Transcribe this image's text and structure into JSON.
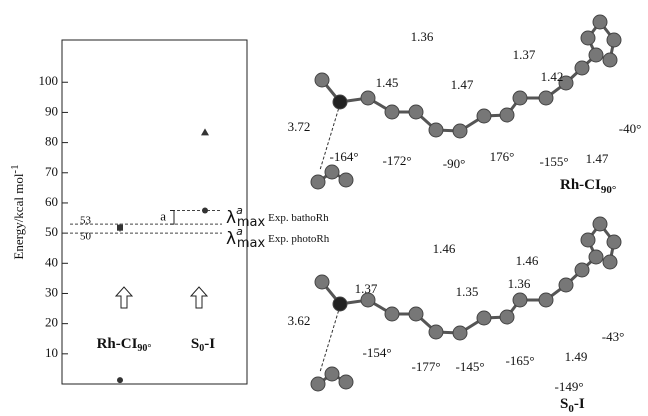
{
  "chart_data": {
    "type": "scatter",
    "y_label": "Energy/kcal mol",
    "y_label_sup": "-1",
    "ylim": [
      0,
      114
    ],
    "yticks": [
      10,
      20,
      30,
      40,
      50,
      60,
      70,
      80,
      90,
      100
    ],
    "categories": [
      {
        "name": "Rh-CI",
        "sub": "90°"
      },
      {
        "name": "S",
        "sub": "0",
        "suffix": "-I"
      }
    ],
    "points": [
      {
        "category": 0,
        "value": 51.8,
        "error": 1.3,
        "marker": "square",
        "color": "#333"
      },
      {
        "category": 0,
        "value": 1.3,
        "marker": "circle",
        "color": "#333"
      },
      {
        "category": 1,
        "value": 83.4,
        "marker": "triangle",
        "color": "#333"
      },
      {
        "category": 1,
        "value": 57.5,
        "marker": "circle",
        "color": "#333"
      }
    ],
    "reference_lines": [
      {
        "value": 53,
        "label": "53",
        "symbol": "λ",
        "sup": "a",
        "sub": "max",
        "note": "Exp. bathoRh"
      },
      {
        "value": 50,
        "label": "50",
        "symbol": "λ",
        "sup": "a",
        "sub": "max",
        "note": "Exp. photoRh"
      }
    ],
    "bracket_label": "a"
  },
  "molecules": [
    {
      "title": "Rh-CI",
      "title_sub": "90°",
      "labels": [
        "1.36",
        "1.37",
        "1.45",
        "1.47",
        "1.42",
        "3.72",
        "1.47",
        "-40°",
        "-164°",
        "-172°",
        "-90°",
        "176°",
        "-155°"
      ]
    },
    {
      "title": "S",
      "title_sub": "0",
      "title_suffix": "-I",
      "labels": [
        "1.46",
        "1.46",
        "1.37",
        "1.35",
        "1.36",
        "3.62",
        "1.49",
        "-43°",
        "-154°",
        "-177°",
        "-145°",
        "-165°",
        "-149°"
      ]
    }
  ]
}
